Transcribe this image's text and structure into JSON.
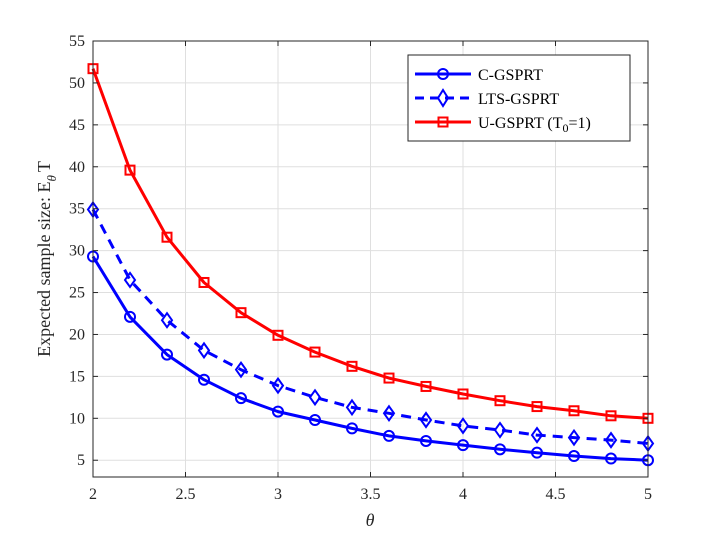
{
  "chart_data": {
    "type": "line",
    "title": "",
    "xlabel": "θ",
    "ylabel": "Expected sample size: E",
    "ylabel_sub": "θ",
    "ylabel_tail": "T",
    "xlim": [
      2,
      5
    ],
    "ylim": [
      3,
      55
    ],
    "grid": true,
    "legend_position": "top-right",
    "x_ticks": [
      "2",
      "2.5",
      "3",
      "3.5",
      "4",
      "4.5",
      "5"
    ],
    "y_ticks": [
      "5",
      "10",
      "15",
      "20",
      "25",
      "30",
      "35",
      "40",
      "45",
      "50",
      "55"
    ],
    "x": [
      2.0,
      2.2,
      2.4,
      2.6,
      2.8,
      3.0,
      3.2,
      3.4,
      3.6,
      3.8,
      4.0,
      4.2,
      4.4,
      4.6,
      4.8,
      5.0
    ],
    "series": [
      {
        "name": "C-GSPRT",
        "color": "#0000ff",
        "line_style": "solid",
        "marker": "circle",
        "values": [
          29.3,
          22.1,
          17.6,
          14.6,
          12.4,
          10.8,
          9.8,
          8.8,
          7.9,
          7.3,
          6.8,
          6.3,
          5.9,
          5.5,
          5.2,
          5.0
        ]
      },
      {
        "name": "LTS-GSPRT",
        "color": "#0000ff",
        "line_style": "dashed",
        "marker": "diamond",
        "values": [
          34.9,
          26.5,
          21.7,
          18.1,
          15.8,
          13.9,
          12.5,
          11.3,
          10.6,
          9.8,
          9.1,
          8.6,
          8.0,
          7.7,
          7.4,
          7.0
        ]
      },
      {
        "name": "U-GSPRT (T",
        "name_sub": "0",
        "name_tail": "=1)",
        "color": "#ff0000",
        "line_style": "solid",
        "marker": "square",
        "values": [
          51.7,
          39.6,
          31.6,
          26.2,
          22.6,
          19.9,
          17.9,
          16.2,
          14.8,
          13.8,
          12.9,
          12.1,
          11.4,
          10.9,
          10.3,
          10.0
        ]
      }
    ]
  }
}
